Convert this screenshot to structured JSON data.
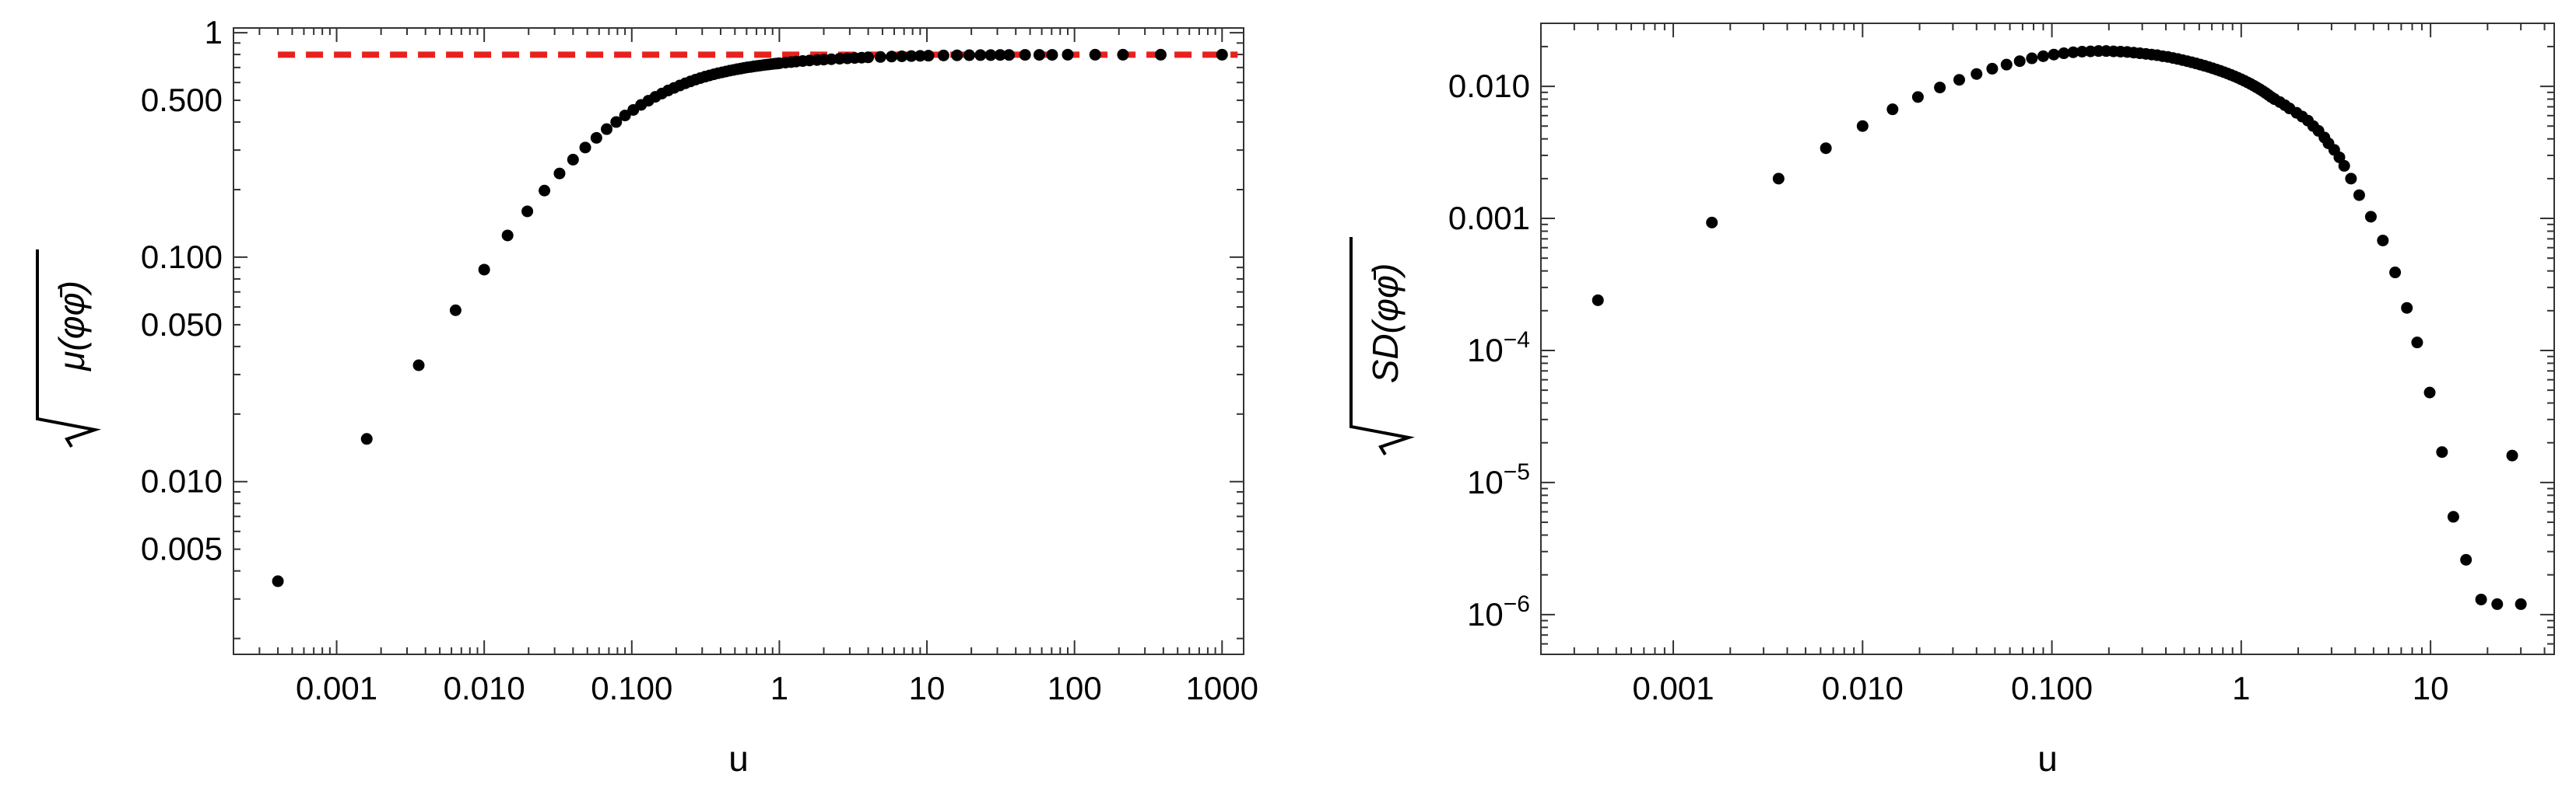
{
  "chart_data": [
    {
      "type": "scatter",
      "xlabel": "u",
      "ylabel": "√μ(φφ̄)",
      "xscale": "log",
      "yscale": "log",
      "xlim": [
        0.0002,
        1400
      ],
      "ylim": [
        0.0017,
        1.05
      ],
      "xticks": [
        {
          "value": 0.001,
          "label": "0.001"
        },
        {
          "value": 0.01,
          "label": "0.010"
        },
        {
          "value": 0.1,
          "label": "0.100"
        },
        {
          "value": 1,
          "label": "1"
        },
        {
          "value": 10,
          "label": "10"
        },
        {
          "value": 100,
          "label": "100"
        },
        {
          "value": 1000,
          "label": "1000"
        }
      ],
      "yticks": [
        {
          "value": 0.005,
          "label": "0.005"
        },
        {
          "value": 0.01,
          "label": "0.010"
        },
        {
          "value": 0.05,
          "label": "0.050"
        },
        {
          "value": 0.1,
          "label": "0.100"
        },
        {
          "value": 0.5,
          "label": "0.500"
        },
        {
          "value": 1,
          "label": "1"
        }
      ],
      "reference_line": {
        "y": 0.798,
        "x_from": 0.0004,
        "x_to": 1000,
        "color": "#e8211e",
        "style": "dashed"
      },
      "series": [
        {
          "color": "#000000",
          "points": [
            [
              0.0004,
              0.0036
            ],
            [
              0.0016,
              0.0155
            ],
            [
              0.0036,
              0.033
            ],
            [
              0.0064,
              0.058
            ],
            [
              0.01,
              0.088
            ],
            [
              0.0144,
              0.125
            ],
            [
              0.0196,
              0.16
            ],
            [
              0.0256,
              0.198
            ],
            [
              0.0324,
              0.236
            ],
            [
              0.04,
              0.272
            ],
            [
              0.0484,
              0.308
            ],
            [
              0.0576,
              0.34
            ],
            [
              0.0676,
              0.372
            ],
            [
              0.0784,
              0.4
            ],
            [
              0.09,
              0.428
            ],
            [
              0.1024,
              0.453
            ],
            [
              0.1156,
              0.477
            ],
            [
              0.1296,
              0.498
            ],
            [
              0.1444,
              0.518
            ],
            [
              0.16,
              0.536
            ],
            [
              0.1764,
              0.553
            ],
            [
              0.1936,
              0.568
            ],
            [
              0.2116,
              0.582
            ],
            [
              0.2304,
              0.595
            ],
            [
              0.25,
              0.607
            ],
            [
              0.2704,
              0.618
            ],
            [
              0.2916,
              0.628
            ],
            [
              0.3136,
              0.637
            ],
            [
              0.3364,
              0.645
            ],
            [
              0.36,
              0.653
            ],
            [
              0.3844,
              0.66
            ],
            [
              0.4096,
              0.666
            ],
            [
              0.4356,
              0.672
            ],
            [
              0.4624,
              0.678
            ],
            [
              0.49,
              0.683
            ],
            [
              0.5184,
              0.688
            ],
            [
              0.5476,
              0.692
            ],
            [
              0.5776,
              0.697
            ],
            [
              0.6084,
              0.701
            ],
            [
              0.64,
              0.704
            ],
            [
              0.6724,
              0.708
            ],
            [
              0.7056,
              0.711
            ],
            [
              0.7396,
              0.714
            ],
            [
              0.7744,
              0.717
            ],
            [
              0.81,
              0.72
            ],
            [
              0.8464,
              0.722
            ],
            [
              0.8836,
              0.725
            ],
            [
              0.9216,
              0.727
            ],
            [
              0.9604,
              0.729
            ],
            [
              1.0,
              0.731
            ],
            [
              1.1,
              0.736
            ],
            [
              1.2,
              0.74
            ],
            [
              1.3,
              0.744
            ],
            [
              1.44,
              0.748
            ],
            [
              1.6,
              0.752
            ],
            [
              1.8,
              0.756
            ],
            [
              2.0,
              0.759
            ],
            [
              2.25,
              0.762
            ],
            [
              2.56,
              0.766
            ],
            [
              2.89,
              0.769
            ],
            [
              3.24,
              0.772
            ],
            [
              3.61,
              0.774
            ],
            [
              4.0,
              0.777
            ],
            [
              4.84,
              0.78
            ],
            [
              5.76,
              0.783
            ],
            [
              6.76,
              0.785
            ],
            [
              7.84,
              0.787
            ],
            [
              9.0,
              0.789
            ],
            [
              10.24,
              0.79
            ],
            [
              12.96,
              0.792
            ],
            [
              16.0,
              0.793
            ],
            [
              19.36,
              0.794
            ],
            [
              23.04,
              0.795
            ],
            [
              27.04,
              0.795
            ],
            [
              31.36,
              0.796
            ],
            [
              36.0,
              0.796
            ],
            [
              46.24,
              0.797
            ],
            [
              57.76,
              0.797
            ],
            [
              70.56,
              0.797
            ],
            [
              90.0,
              0.798
            ],
            [
              138.0,
              0.798
            ],
            [
              213.0,
              0.798
            ],
            [
              384.0,
              0.798
            ],
            [
              1000.0,
              0.798
            ]
          ]
        }
      ]
    },
    {
      "type": "scatter",
      "xlabel": "u",
      "ylabel": "√SD(φφ̄)",
      "xscale": "log",
      "yscale": "log",
      "xlim": [
        0.0002,
        45
      ],
      "ylim": [
        5e-07,
        0.03
      ],
      "xticks": [
        {
          "value": 0.001,
          "label": "0.001"
        },
        {
          "value": 0.01,
          "label": "0.010"
        },
        {
          "value": 0.1,
          "label": "0.100"
        },
        {
          "value": 1,
          "label": "1"
        },
        {
          "value": 10,
          "label": "10"
        }
      ],
      "yticks": [
        {
          "value": 1e-06,
          "label": "10",
          "exp": "−6"
        },
        {
          "value": 1e-05,
          "label": "10",
          "exp": "−5"
        },
        {
          "value": 0.0001,
          "label": "10",
          "exp": "−4"
        },
        {
          "value": 0.001,
          "label": "0.001"
        },
        {
          "value": 0.01,
          "label": "0.010"
        }
      ],
      "series": [
        {
          "color": "#000000",
          "points": [
            [
              0.0004,
              0.00024
            ],
            [
              0.0016,
              0.00093
            ],
            [
              0.0036,
              0.002
            ],
            [
              0.0064,
              0.0034
            ],
            [
              0.01,
              0.005
            ],
            [
              0.0144,
              0.0067
            ],
            [
              0.0196,
              0.0083
            ],
            [
              0.0256,
              0.0098
            ],
            [
              0.0324,
              0.0112
            ],
            [
              0.04,
              0.0124
            ],
            [
              0.0484,
              0.0136
            ],
            [
              0.0576,
              0.0146
            ],
            [
              0.0676,
              0.0155
            ],
            [
              0.0784,
              0.0163
            ],
            [
              0.09,
              0.0169
            ],
            [
              0.1024,
              0.0174
            ],
            [
              0.1156,
              0.0178
            ],
            [
              0.1296,
              0.0181
            ],
            [
              0.1444,
              0.0183
            ],
            [
              0.16,
              0.0184
            ],
            [
              0.1764,
              0.0185
            ],
            [
              0.1936,
              0.0185
            ],
            [
              0.2116,
              0.0184
            ],
            [
              0.2304,
              0.0183
            ],
            [
              0.25,
              0.0182
            ],
            [
              0.2704,
              0.018
            ],
            [
              0.2916,
              0.0178
            ],
            [
              0.3136,
              0.0176
            ],
            [
              0.3364,
              0.0174
            ],
            [
              0.36,
              0.0172
            ],
            [
              0.3844,
              0.0169
            ],
            [
              0.4096,
              0.0167
            ],
            [
              0.4356,
              0.0164
            ],
            [
              0.4624,
              0.0161
            ],
            [
              0.49,
              0.0158
            ],
            [
              0.5184,
              0.0155
            ],
            [
              0.5476,
              0.0152
            ],
            [
              0.5776,
              0.0149
            ],
            [
              0.6084,
              0.0146
            ],
            [
              0.64,
              0.0143
            ],
            [
              0.6724,
              0.014
            ],
            [
              0.7056,
              0.0137
            ],
            [
              0.7396,
              0.0134
            ],
            [
              0.7744,
              0.0131
            ],
            [
              0.81,
              0.0128
            ],
            [
              0.8464,
              0.0125
            ],
            [
              0.8836,
              0.0122
            ],
            [
              0.9216,
              0.0119
            ],
            [
              0.9604,
              0.0116
            ],
            [
              1.0,
              0.0113
            ],
            [
              1.0404,
              0.011
            ],
            [
              1.0816,
              0.0107
            ],
            [
              1.1236,
              0.0104
            ],
            [
              1.1664,
              0.0101
            ],
            [
              1.21,
              0.0098
            ],
            [
              1.2544,
              0.0095
            ],
            [
              1.2996,
              0.0092
            ],
            [
              1.3456,
              0.0089
            ],
            [
              1.3924,
              0.0086
            ],
            [
              1.44,
              0.0083
            ],
            [
              1.5,
              0.008
            ],
            [
              1.6,
              0.0076
            ],
            [
              1.7,
              0.0072
            ],
            [
              1.8,
              0.0068
            ],
            [
              1.96,
              0.0063
            ],
            [
              2.1,
              0.0059
            ],
            [
              2.25,
              0.0055
            ],
            [
              2.4,
              0.005
            ],
            [
              2.56,
              0.0046
            ],
            [
              2.75,
              0.0041
            ],
            [
              2.89,
              0.0037
            ],
            [
              3.1,
              0.0033
            ],
            [
              3.3,
              0.0029
            ],
            [
              3.5,
              0.0025
            ],
            [
              3.8,
              0.002
            ],
            [
              4.2,
              0.0015
            ],
            [
              4.84,
              0.00103
            ],
            [
              5.6,
              0.00068
            ],
            [
              6.5,
              0.00039
            ],
            [
              7.5,
              0.00021
            ],
            [
              8.5,
              0.000115
            ],
            [
              9.9,
              4.8e-05
            ],
            [
              11.5,
              1.7e-05
            ],
            [
              13.2,
              5.5e-06
            ],
            [
              15.4,
              2.6e-06
            ],
            [
              18.5,
              1.3e-06
            ],
            [
              22.5,
              1.2e-06
            ],
            [
              27.0,
              1.6e-05
            ],
            [
              30.0,
              1.2e-06
            ]
          ]
        }
      ]
    }
  ]
}
